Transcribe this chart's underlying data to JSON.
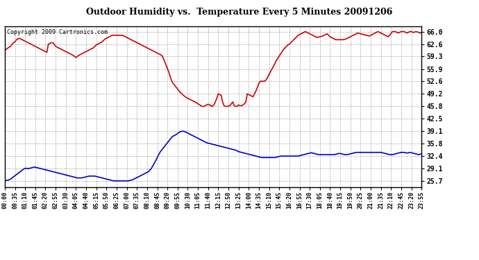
{
  "title": "Outdoor Humidity vs.  Temperature Every 5 Minutes 20091206",
  "copyright_text": "Copyright 2009 Cartronics.com",
  "background_color": "#ffffff",
  "grid_color": "#aaaaaa",
  "line_color_red": "#cc0000",
  "line_color_blue": "#0000cc",
  "yticks": [
    25.7,
    29.1,
    32.4,
    35.8,
    39.1,
    42.5,
    45.8,
    49.2,
    52.6,
    55.9,
    59.3,
    62.6,
    66.0
  ],
  "ylim": [
    24.0,
    67.5
  ],
  "xlim_min": 0,
  "xlim_max": 287,
  "xtick_interval_minutes": 35,
  "humidity_data": [
    61.0,
    61.2,
    61.5,
    61.8,
    62.0,
    62.6,
    63.0,
    63.2,
    63.8,
    64.0,
    64.2,
    64.0,
    63.8,
    63.6,
    63.4,
    63.2,
    63.0,
    62.8,
    62.6,
    62.4,
    62.2,
    62.0,
    61.8,
    61.6,
    61.4,
    61.2,
    61.0,
    60.8,
    60.6,
    60.4,
    62.6,
    62.8,
    63.0,
    63.0,
    62.6,
    62.0,
    61.8,
    61.6,
    61.4,
    61.2,
    61.0,
    60.8,
    60.6,
    60.4,
    60.2,
    60.0,
    59.8,
    59.6,
    59.3,
    59.0,
    59.3,
    59.6,
    59.8,
    60.0,
    60.2,
    60.4,
    60.6,
    60.8,
    61.0,
    61.2,
    61.4,
    61.6,
    62.0,
    62.4,
    62.6,
    62.8,
    63.0,
    63.2,
    63.6,
    64.0,
    64.2,
    64.4,
    64.6,
    64.8,
    65.0,
    65.0,
    65.0,
    65.0,
    65.0,
    65.0,
    65.0,
    65.0,
    64.8,
    64.6,
    64.4,
    64.2,
    64.0,
    63.8,
    63.6,
    63.4,
    63.2,
    63.0,
    62.8,
    62.6,
    62.4,
    62.2,
    62.0,
    61.8,
    61.6,
    61.4,
    61.2,
    61.0,
    60.8,
    60.6,
    60.4,
    60.2,
    60.0,
    59.8,
    59.6,
    59.0,
    58.0,
    57.0,
    56.0,
    55.0,
    53.8,
    52.6,
    52.0,
    51.5,
    51.0,
    50.5,
    50.0,
    49.5,
    49.2,
    48.8,
    48.5,
    48.2,
    48.0,
    47.8,
    47.6,
    47.4,
    47.2,
    47.0,
    46.8,
    46.5,
    46.3,
    46.0,
    45.8,
    45.8,
    46.0,
    46.2,
    46.4,
    46.2,
    46.0,
    45.8,
    46.2,
    47.0,
    48.0,
    49.2,
    49.0,
    48.8,
    47.0,
    46.0,
    45.8,
    45.8,
    45.9,
    46.0,
    46.5,
    47.0,
    46.0,
    45.8,
    45.8,
    46.2,
    46.0,
    46.0,
    46.2,
    46.5,
    47.0,
    49.2,
    49.0,
    48.8,
    48.6,
    48.4,
    49.2,
    50.0,
    51.0,
    52.0,
    52.6,
    52.6,
    52.6,
    52.6,
    53.0,
    53.6,
    54.4,
    55.2,
    55.9,
    56.6,
    57.4,
    58.2,
    58.8,
    59.4,
    60.0,
    60.6,
    61.2,
    61.6,
    62.0,
    62.4,
    62.6,
    63.0,
    63.4,
    63.8,
    64.2,
    64.6,
    65.0,
    65.2,
    65.4,
    65.6,
    65.8,
    66.0,
    65.8,
    65.6,
    65.4,
    65.2,
    65.0,
    64.8,
    64.6,
    64.4,
    64.5,
    64.6,
    64.7,
    64.8,
    65.0,
    65.2,
    65.4,
    65.0,
    64.6,
    64.4,
    64.2,
    64.0,
    63.8,
    63.8,
    63.8,
    63.8,
    63.8,
    63.8,
    63.9,
    64.0,
    64.2,
    64.4,
    64.6,
    64.8,
    65.0,
    65.2,
    65.4,
    65.6,
    65.5,
    65.4,
    65.3,
    65.2,
    65.1,
    65.0,
    64.9,
    64.8,
    65.0,
    65.2,
    65.4,
    65.6,
    65.8,
    66.0,
    65.8,
    65.6,
    65.4,
    65.2,
    65.0,
    64.8,
    64.6,
    65.0,
    65.5,
    66.0,
    66.0,
    66.0,
    65.8,
    65.6,
    65.8,
    66.0,
    66.0,
    66.0,
    65.8,
    65.6,
    65.8,
    66.0,
    66.0,
    65.8,
    65.8,
    66.0,
    65.9,
    65.8,
    65.6,
    65.8,
    66.0,
    66.2
  ],
  "temperature_data": [
    25.7,
    25.8,
    25.9,
    26.0,
    26.2,
    26.5,
    26.8,
    27.1,
    27.4,
    27.7,
    28.0,
    28.3,
    28.6,
    28.9,
    29.1,
    29.1,
    29.0,
    29.1,
    29.2,
    29.3,
    29.4,
    29.4,
    29.3,
    29.2,
    29.1,
    29.0,
    28.9,
    28.8,
    28.7,
    28.6,
    28.5,
    28.4,
    28.3,
    28.2,
    28.1,
    28.0,
    27.9,
    27.8,
    27.7,
    27.6,
    27.5,
    27.4,
    27.3,
    27.2,
    27.1,
    27.0,
    26.9,
    26.8,
    26.7,
    26.6,
    26.5,
    26.5,
    26.5,
    26.5,
    26.6,
    26.7,
    26.8,
    26.9,
    27.0,
    27.0,
    27.0,
    27.0,
    27.0,
    26.9,
    26.8,
    26.7,
    26.6,
    26.5,
    26.4,
    26.3,
    26.2,
    26.1,
    26.0,
    25.9,
    25.8,
    25.7,
    25.7,
    25.7,
    25.7,
    25.7,
    25.7,
    25.7,
    25.7,
    25.7,
    25.7,
    25.7,
    25.8,
    25.9,
    26.0,
    26.2,
    26.4,
    26.6,
    26.8,
    27.0,
    27.2,
    27.4,
    27.6,
    27.8,
    28.0,
    28.2,
    28.6,
    29.1,
    29.8,
    30.5,
    31.2,
    32.0,
    32.8,
    33.5,
    34.0,
    34.5,
    35.0,
    35.5,
    36.0,
    36.5,
    37.0,
    37.5,
    37.8,
    38.0,
    38.2,
    38.5,
    38.8,
    39.0,
    39.1,
    39.1,
    39.0,
    38.8,
    38.6,
    38.4,
    38.2,
    38.0,
    37.8,
    37.6,
    37.4,
    37.2,
    37.0,
    36.8,
    36.6,
    36.4,
    36.2,
    36.0,
    35.9,
    35.8,
    35.7,
    35.6,
    35.5,
    35.4,
    35.3,
    35.2,
    35.1,
    35.0,
    34.9,
    34.8,
    34.7,
    34.6,
    34.5,
    34.4,
    34.3,
    34.2,
    34.1,
    34.0,
    33.8,
    33.6,
    33.5,
    33.4,
    33.3,
    33.2,
    33.1,
    33.0,
    32.9,
    32.8,
    32.7,
    32.6,
    32.5,
    32.4,
    32.3,
    32.2,
    32.1,
    32.0,
    32.0,
    32.0,
    32.0,
    32.0,
    32.0,
    32.0,
    32.0,
    32.0,
    32.0,
    32.1,
    32.2,
    32.3,
    32.4,
    32.4,
    32.4,
    32.4,
    32.4,
    32.4,
    32.4,
    32.4,
    32.4,
    32.4,
    32.4,
    32.4,
    32.4,
    32.5,
    32.6,
    32.7,
    32.8,
    32.9,
    33.0,
    33.1,
    33.2,
    33.3,
    33.2,
    33.1,
    33.0,
    32.9,
    32.8,
    32.8,
    32.8,
    32.8,
    32.8,
    32.8,
    32.8,
    32.8,
    32.8,
    32.8,
    32.8,
    32.8,
    32.9,
    33.0,
    33.1,
    33.1,
    33.0,
    32.9,
    32.8,
    32.8,
    32.8,
    32.9,
    33.0,
    33.1,
    33.2,
    33.3,
    33.4,
    33.4,
    33.4,
    33.4,
    33.4,
    33.4,
    33.4,
    33.4,
    33.4,
    33.4,
    33.4,
    33.4,
    33.4,
    33.4,
    33.4,
    33.4,
    33.4,
    33.4,
    33.3,
    33.2,
    33.1,
    33.0,
    32.9,
    32.8,
    32.8,
    32.8,
    32.9,
    33.0,
    33.1,
    33.2,
    33.3,
    33.4,
    33.4,
    33.4,
    33.3,
    33.2,
    33.3,
    33.4,
    33.3,
    33.2,
    33.1,
    33.0,
    32.9,
    32.8,
    32.9,
    33.0,
    33.1,
    33.2
  ]
}
